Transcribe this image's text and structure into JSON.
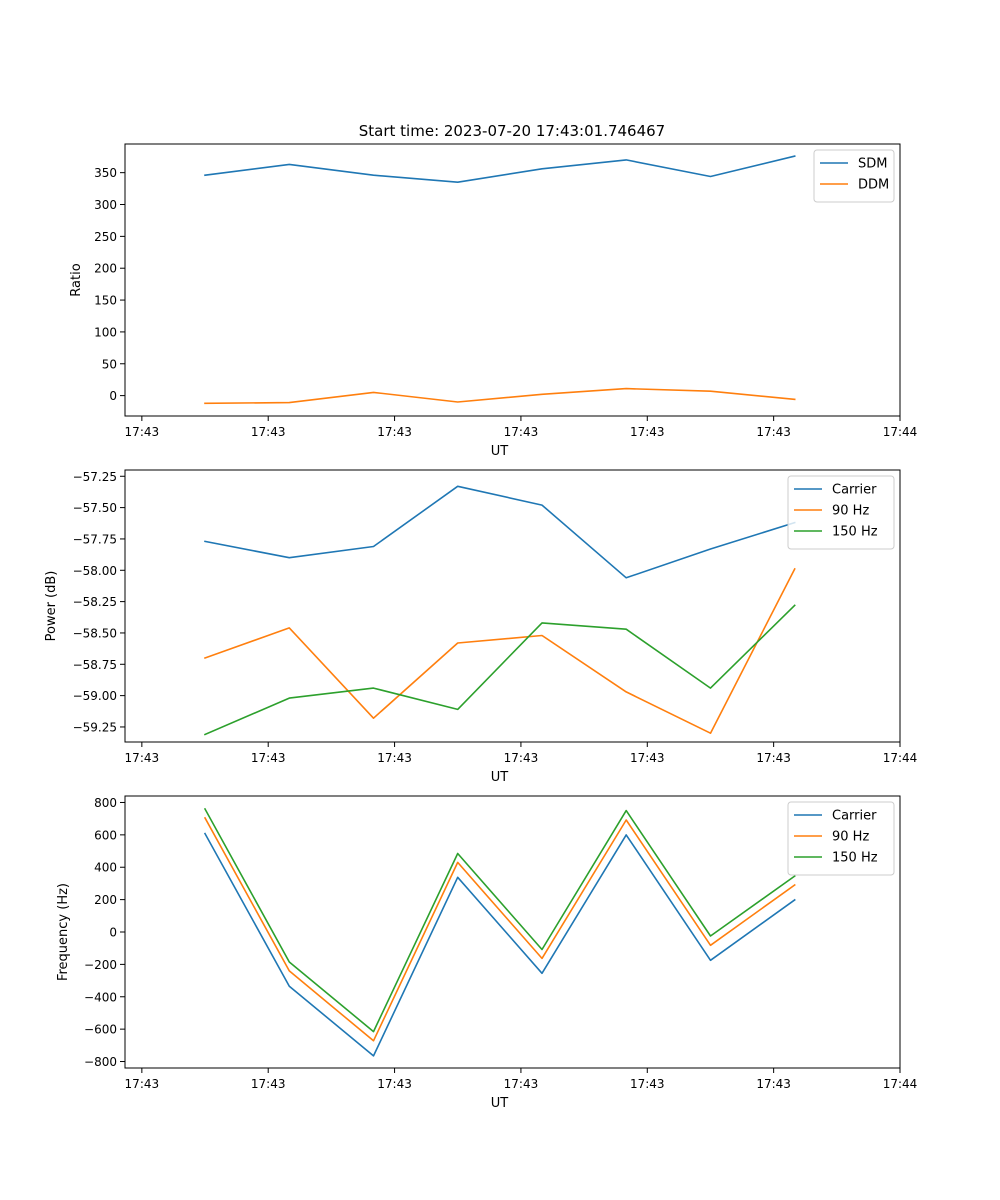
{
  "figure_title": "Start time: 2023-07-20 17:43:01.746467",
  "colors": {
    "blue": "#1f77b4",
    "orange": "#ff7f0e",
    "green": "#2ca02c"
  },
  "chart_data": [
    {
      "type": "line",
      "title": "Start time: 2023-07-20 17:43:01.746467",
      "xlabel": "UT",
      "ylabel": "Ratio",
      "xlim": [
        -0.6,
        8.6
      ],
      "ylim": [
        -32,
        395
      ],
      "x_tick_positions": [
        -0.4,
        1.1,
        2.6,
        4.1,
        5.6,
        7.1,
        8.6
      ],
      "x_tick_labels": [
        "17:43",
        "17:43",
        "17:43",
        "17:43",
        "17:43",
        "17:43",
        "17:44"
      ],
      "y_ticks": [
        0,
        50,
        100,
        150,
        200,
        250,
        300,
        350
      ],
      "y_tick_labels": [
        "0",
        "50",
        "100",
        "150",
        "200",
        "250",
        "300",
        "350"
      ],
      "legend": "top-right",
      "x": [
        0.35,
        1.35,
        2.35,
        3.35,
        4.35,
        5.35,
        6.35,
        7.35
      ],
      "series": [
        {
          "name": "SDM",
          "color": "#1f77b4",
          "values": [
            346,
            363,
            346,
            335,
            356,
            370,
            344,
            376
          ]
        },
        {
          "name": "DDM",
          "color": "#ff7f0e",
          "values": [
            -12,
            -11,
            5,
            -10,
            2,
            11,
            7,
            -6
          ]
        }
      ]
    },
    {
      "type": "line",
      "xlabel": "UT",
      "ylabel": "Power (dB)",
      "xlim": [
        -0.6,
        8.6
      ],
      "ylim": [
        -59.37,
        -57.2
      ],
      "x_tick_positions": [
        -0.4,
        1.1,
        2.6,
        4.1,
        5.6,
        7.1,
        8.6
      ],
      "x_tick_labels": [
        "17:43",
        "17:43",
        "17:43",
        "17:43",
        "17:43",
        "17:43",
        "17:44"
      ],
      "y_ticks": [
        -59.25,
        -59.0,
        -58.75,
        -58.5,
        -58.25,
        -58.0,
        -57.75,
        -57.5,
        -57.25
      ],
      "y_tick_labels": [
        "−59.25",
        "−59.00",
        "−58.75",
        "−58.50",
        "−58.25",
        "−58.00",
        "−57.75",
        "−57.50",
        "−57.25"
      ],
      "legend": "top-right",
      "x": [
        0.35,
        1.35,
        2.35,
        3.35,
        4.35,
        5.35,
        6.35,
        7.35
      ],
      "series": [
        {
          "name": "Carrier",
          "color": "#1f77b4",
          "values": [
            -57.77,
            -57.9,
            -57.81,
            -57.33,
            -57.48,
            -58.06,
            -57.83,
            -57.62
          ]
        },
        {
          "name": "90 Hz",
          "color": "#ff7f0e",
          "values": [
            -58.7,
            -58.46,
            -59.18,
            -58.58,
            -58.52,
            -58.97,
            -59.3,
            -57.99
          ]
        },
        {
          "name": "150 Hz",
          "color": "#2ca02c",
          "values": [
            -59.31,
            -59.02,
            -58.94,
            -59.11,
            -58.42,
            -58.47,
            -58.94,
            -58.28
          ]
        }
      ]
    },
    {
      "type": "line",
      "xlabel": "UT",
      "ylabel": "Frequency (Hz)",
      "xlim": [
        -0.6,
        8.6
      ],
      "ylim": [
        -840,
        840
      ],
      "x_tick_positions": [
        -0.4,
        1.1,
        2.6,
        4.1,
        5.6,
        7.1,
        8.6
      ],
      "x_tick_labels": [
        "17:43",
        "17:43",
        "17:43",
        "17:43",
        "17:43",
        "17:43",
        "17:44"
      ],
      "y_ticks": [
        -800,
        -600,
        -400,
        -200,
        0,
        200,
        400,
        600,
        800
      ],
      "y_tick_labels": [
        "−800",
        "−600",
        "−400",
        "−200",
        "0",
        "200",
        "400",
        "600",
        "800"
      ],
      "legend": "top-right",
      "x": [
        0.35,
        1.35,
        2.35,
        3.35,
        4.35,
        5.35,
        6.35,
        7.35
      ],
      "series": [
        {
          "name": "Carrier",
          "color": "#1f77b4",
          "values": [
            608,
            -335,
            -765,
            338,
            -255,
            600,
            -175,
            198
          ]
        },
        {
          "name": "90 Hz",
          "color": "#ff7f0e",
          "values": [
            705,
            -240,
            -672,
            430,
            -163,
            692,
            -82,
            290
          ]
        },
        {
          "name": "150 Hz",
          "color": "#2ca02c",
          "values": [
            760,
            -185,
            -615,
            485,
            -108,
            750,
            -25,
            345
          ]
        }
      ]
    }
  ]
}
